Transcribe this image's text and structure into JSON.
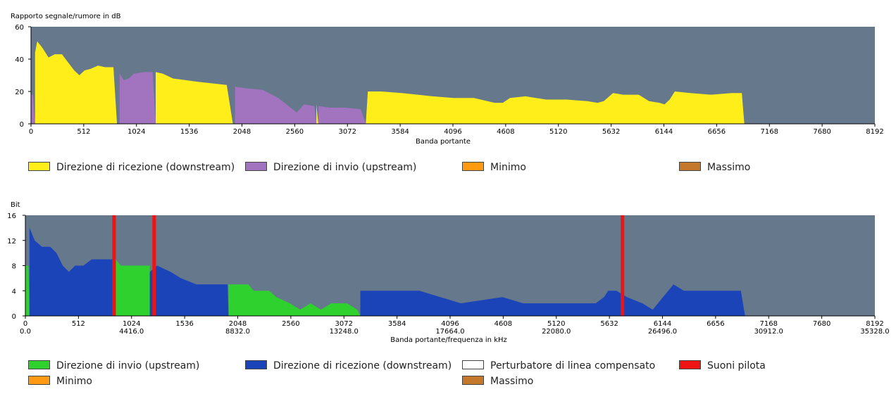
{
  "chart_data": [
    {
      "type": "area",
      "title": "Rapporto segnale/rumore in dB",
      "xlabel": "Banda portante",
      "ylabel": "Rapporto segnale/rumore in dB",
      "xlim": [
        0,
        8192
      ],
      "ylim": [
        0,
        60
      ],
      "x_ticks": [
        "0",
        "512",
        "1024",
        "1536",
        "2048",
        "2560",
        "3072",
        "3584",
        "4096",
        "4608",
        "5120",
        "5632",
        "6144",
        "6656",
        "7168",
        "7680",
        "8192"
      ],
      "y_ticks": [
        "0",
        "20",
        "40",
        "60"
      ],
      "grid": false,
      "series": [
        {
          "name": "Direzione di ricezione (downstream)",
          "color": "#ffee1a",
          "segments": [
            [
              [
                40,
                0
              ],
              [
                40,
                44
              ],
              [
                60,
                51
              ],
              [
                110,
                47
              ],
              [
                170,
                41
              ],
              [
                230,
                43
              ],
              [
                300,
                43
              ],
              [
                360,
                38
              ],
              [
                420,
                33
              ],
              [
                470,
                30
              ],
              [
                520,
                33
              ],
              [
                580,
                34
              ],
              [
                650,
                36
              ],
              [
                720,
                35
              ],
              [
                800,
                35
              ],
              [
                835,
                0
              ]
            ],
            [
              [
                1210,
                0
              ],
              [
                1210,
                32
              ],
              [
                1280,
                31
              ],
              [
                1380,
                28
              ],
              [
                1500,
                27
              ],
              [
                1620,
                26
              ],
              [
                1760,
                25
              ],
              [
                1900,
                24
              ],
              [
                1960,
                0
              ]
            ],
            [
              [
                2770,
                0
              ],
              [
                2770,
                12
              ],
              [
                2790,
                0
              ]
            ],
            [
              [
                3250,
                0
              ],
              [
                3270,
                20
              ],
              [
                3400,
                20
              ],
              [
                3600,
                19
              ],
              [
                3900,
                17
              ],
              [
                4100,
                16
              ],
              [
                4300,
                16
              ],
              [
                4500,
                13
              ],
              [
                4580,
                13
              ],
              [
                4650,
                16
              ],
              [
                4800,
                17
              ],
              [
                5000,
                15
              ],
              [
                5200,
                15
              ],
              [
                5400,
                14
              ],
              [
                5500,
                13
              ],
              [
                5560,
                14
              ],
              [
                5650,
                19
              ],
              [
                5750,
                18
              ],
              [
                5900,
                18
              ],
              [
                6000,
                14
              ],
              [
                6100,
                13
              ],
              [
                6150,
                12
              ],
              [
                6200,
                15
              ],
              [
                6250,
                20
              ],
              [
                6400,
                19
              ],
              [
                6600,
                18
              ],
              [
                6800,
                19
              ],
              [
                6900,
                19
              ],
              [
                6925,
                0
              ]
            ]
          ]
        },
        {
          "name": "Direzione di invio  (upstream)",
          "color": "#a274c0",
          "segments": [
            [
              [
                0,
                0
              ],
              [
                0,
                18
              ],
              [
                20,
                18
              ],
              [
                40,
                0
              ]
            ],
            [
              [
                860,
                0
              ],
              [
                860,
                31
              ],
              [
                900,
                27
              ],
              [
                950,
                28
              ],
              [
                1000,
                31
              ],
              [
                1100,
                32
              ],
              [
                1180,
                32
              ],
              [
                1210,
                0
              ]
            ],
            [
              [
                1980,
                0
              ],
              [
                1980,
                23
              ],
              [
                2080,
                22
              ],
              [
                2250,
                21
              ],
              [
                2400,
                16
              ],
              [
                2520,
                10
              ],
              [
                2580,
                7
              ],
              [
                2650,
                12
              ],
              [
                2750,
                11
              ],
              [
                2770,
                0
              ]
            ],
            [
              [
                2790,
                0
              ],
              [
                2790,
                11
              ],
              [
                2900,
                10
              ],
              [
                3050,
                10
              ],
              [
                3200,
                9
              ],
              [
                3250,
                0
              ]
            ]
          ]
        },
        {
          "name": "Minimo",
          "color": "#ff9a12",
          "segments": []
        },
        {
          "name": "Massimo",
          "color": "#c3782c",
          "segments": []
        }
      ]
    },
    {
      "type": "area",
      "title": "Bit",
      "xlabel": "Banda portante/frequenza in kHz",
      "ylabel": "Bit",
      "xlim": [
        0,
        8192
      ],
      "ylim": [
        0,
        16
      ],
      "x_ticks": [
        "0",
        "512",
        "1024",
        "1536",
        "2048",
        "2560",
        "3072",
        "3584",
        "4096",
        "4608",
        "5120",
        "5632",
        "6144",
        "6656",
        "7168",
        "7680",
        "8192"
      ],
      "x_ticks_secondary": [
        "0.0",
        "4416.0",
        "8832.0",
        "13248.0",
        "17664.0",
        "22080.0",
        "26496.0",
        "30912.0",
        "35328.0"
      ],
      "y_ticks": [
        "0",
        "4",
        "8",
        "12",
        "16"
      ],
      "grid": false,
      "series": [
        {
          "name": "Direzione di invio  (upstream)",
          "color": "#2ed12e",
          "segments": [
            [
              [
                0,
                0
              ],
              [
                0,
                8
              ],
              [
                30,
                8
              ],
              [
                40,
                0
              ]
            ],
            [
              [
                870,
                0
              ],
              [
                870,
                9
              ],
              [
                920,
                8
              ],
              [
                1020,
                8
              ],
              [
                1100,
                8
              ],
              [
                1200,
                8
              ],
              [
                1200,
                0
              ]
            ],
            [
              [
                1960,
                0
              ],
              [
                1960,
                5
              ],
              [
                2150,
                5
              ],
              [
                2200,
                4
              ],
              [
                2350,
                4
              ],
              [
                2420,
                3
              ],
              [
                2550,
                2
              ],
              [
                2650,
                1
              ],
              [
                2750,
                2
              ],
              [
                2850,
                1
              ],
              [
                2950,
                2
              ],
              [
                3100,
                2
              ],
              [
                3200,
                1
              ],
              [
                3230,
                0
              ]
            ]
          ]
        },
        {
          "name": "Direzione di ricezione (downstream)",
          "color": "#1a44b8",
          "segments": [
            [
              [
                40,
                0
              ],
              [
                40,
                14
              ],
              [
                90,
                12
              ],
              [
                160,
                11
              ],
              [
                240,
                11
              ],
              [
                300,
                10
              ],
              [
                360,
                8
              ],
              [
                420,
                7
              ],
              [
                480,
                8
              ],
              [
                560,
                8
              ],
              [
                640,
                9
              ],
              [
                720,
                9
              ],
              [
                870,
                9
              ],
              [
                870,
                0
              ]
            ],
            [
              [
                1200,
                0
              ],
              [
                1200,
                7
              ],
              [
                1270,
                8
              ],
              [
                1400,
                7
              ],
              [
                1500,
                6
              ],
              [
                1650,
                5
              ],
              [
                1800,
                5
              ],
              [
                1950,
                5
              ],
              [
                1960,
                0
              ]
            ],
            [
              [
                3230,
                0
              ],
              [
                3230,
                4
              ],
              [
                3800,
                4
              ],
              [
                4000,
                3
              ],
              [
                4200,
                2
              ],
              [
                4600,
                3
              ],
              [
                4800,
                2
              ],
              [
                5200,
                2
              ],
              [
                5500,
                2
              ],
              [
                5580,
                3
              ],
              [
                5620,
                4
              ],
              [
                5700,
                4
              ],
              [
                5800,
                3
              ],
              [
                5950,
                2
              ],
              [
                6050,
                1
              ],
              [
                6100,
                2
              ],
              [
                6250,
                5
              ],
              [
                6350,
                4
              ],
              [
                6900,
                4
              ],
              [
                6940,
                0
              ]
            ]
          ]
        },
        {
          "name": "Perturbatore di linea compensato",
          "color": "#ffffff",
          "segments": []
        },
        {
          "name": "Suoni pilota",
          "color": "#ef1414",
          "pilot_tones": [
            855,
            1242,
            5758
          ]
        },
        {
          "name": "Minimo",
          "color": "#ff9a12",
          "segments": []
        },
        {
          "name": "Massimo",
          "color": "#c3782c",
          "segments": []
        }
      ]
    }
  ],
  "colors": {
    "plot_background": "#66788c",
    "legend_border": "#444444"
  }
}
